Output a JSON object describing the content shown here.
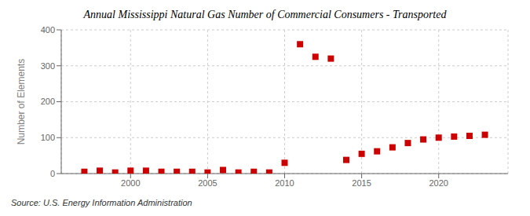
{
  "chart_data": {
    "type": "scatter",
    "title": "Annual Mississippi Natural Gas Number of Commercial Consumers - Transported",
    "ylabel": "Number of Elements",
    "annotations": [
      "Source: U.S. Energy Information Administration"
    ],
    "x": [
      1997,
      1998,
      1999,
      2000,
      2001,
      2002,
      2003,
      2004,
      2005,
      2006,
      2007,
      2008,
      2009,
      2010,
      2011,
      2012,
      2013,
      2014,
      2015,
      2016,
      2017,
      2018,
      2019,
      2020,
      2021,
      2022,
      2023
    ],
    "values": [
      5,
      8,
      3,
      8,
      8,
      5,
      5,
      5,
      3,
      10,
      3,
      5,
      3,
      30,
      360,
      325,
      320,
      38,
      55,
      62,
      73,
      85,
      95,
      100,
      103,
      105,
      108
    ],
    "color": "#cc0000",
    "marker": "square",
    "xlim": [
      1995.5,
      2024.5
    ],
    "ylim": [
      0,
      400
    ],
    "xticks": [
      2000,
      2005,
      2010,
      2015,
      2020
    ],
    "yticks": [
      0,
      100,
      200,
      300,
      400
    ],
    "grid": true
  }
}
